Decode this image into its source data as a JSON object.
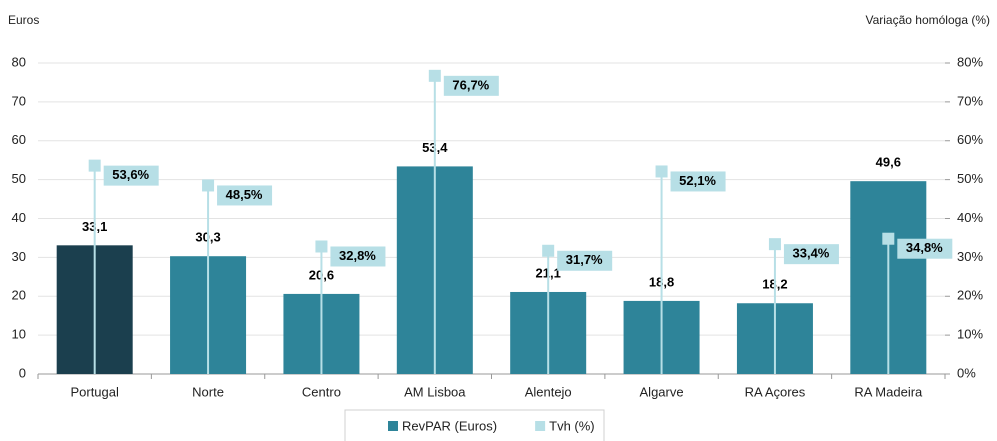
{
  "chart_data": {
    "type": "bar",
    "y_axis_label": "Euros",
    "y2_axis_label": "Variação homóloga (%)",
    "categories": [
      "Portugal",
      "Norte",
      "Centro",
      "AM Lisboa",
      "Alentejo",
      "Algarve",
      "RA Açores",
      "RA Madeira"
    ],
    "series": [
      {
        "name": "RevPAR (Euros)",
        "color": "#2e8499",
        "colors": [
          "#1b3f4e",
          "#2e8499",
          "#2e8499",
          "#2e8499",
          "#2e8499",
          "#2e8499",
          "#2e8499",
          "#2e8499"
        ],
        "values": [
          33.1,
          30.3,
          20.6,
          53.4,
          21.1,
          18.8,
          18.2,
          49.6
        ],
        "value_labels": [
          "33,1",
          "30,3",
          "20,6",
          "53,4",
          "21,1",
          "18,8",
          "18,2",
          "49,6"
        ]
      },
      {
        "name": "Tvh (%)",
        "color": "#b7dfe6",
        "axis": "y2",
        "values": [
          53.6,
          48.5,
          32.8,
          76.7,
          31.7,
          52.1,
          33.4,
          34.8
        ],
        "value_labels": [
          "53,6%",
          "48,5%",
          "32,8%",
          "76,7%",
          "31,7%",
          "52,1%",
          "33,4%",
          "34,8%"
        ]
      }
    ],
    "ylim": [
      0,
      80
    ],
    "yticks": [
      0,
      10,
      20,
      30,
      40,
      50,
      60,
      70,
      80
    ],
    "y2lim": [
      0,
      80
    ],
    "y2ticks": [
      {
        "value": 0,
        "label": "0%"
      },
      {
        "value": 10,
        "label": "10%"
      },
      {
        "value": 20,
        "label": "20%"
      },
      {
        "value": 30,
        "label": "30%"
      },
      {
        "value": 40,
        "label": "40%"
      },
      {
        "value": 50,
        "label": "50%"
      },
      {
        "value": 60,
        "label": "60%"
      },
      {
        "value": 70,
        "label": "70%"
      },
      {
        "value": 80,
        "label": "80%"
      }
    ],
    "legend": "bottom"
  }
}
